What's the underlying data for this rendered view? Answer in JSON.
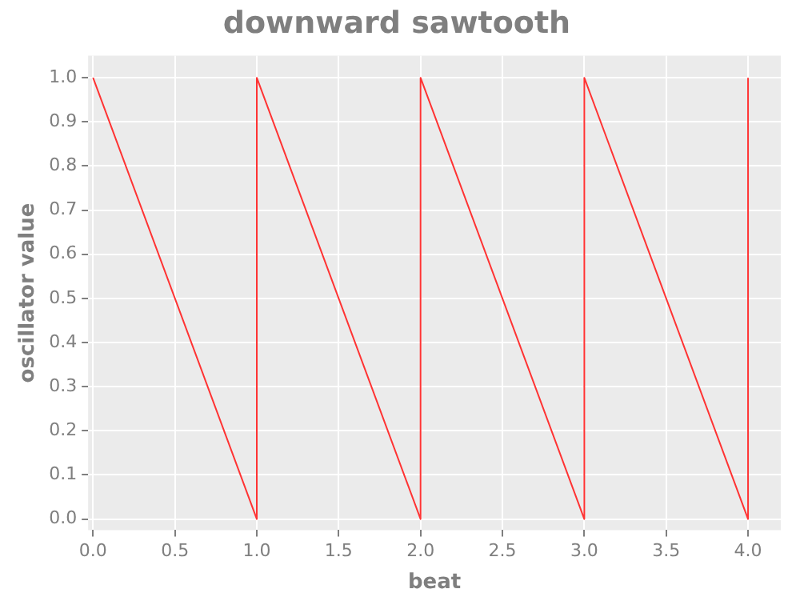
{
  "chart_data": {
    "type": "line",
    "title": "downward sawtooth",
    "xlabel": "beat",
    "ylabel": "oscillator value",
    "x": [
      0,
      1,
      1,
      2,
      2,
      3,
      3,
      4,
      4
    ],
    "series": [
      {
        "color": "#ff3333",
        "values": [
          1,
          0,
          1,
          0,
          1,
          0,
          1,
          0,
          1
        ]
      }
    ],
    "xlim": [
      -0.03,
      4.2
    ],
    "ylim": [
      -0.025,
      1.05
    ],
    "xticks": [
      {
        "value": 0,
        "label": "0.0"
      },
      0.5,
      {
        "value": 1,
        "label": "1.0"
      },
      1.5,
      {
        "value": 2,
        "label": "2.0"
      },
      2.5,
      {
        "value": 3,
        "label": "3.0"
      },
      3.5,
      {
        "value": 4,
        "label": "4.0"
      }
    ],
    "yticks": [
      {
        "value": 0,
        "label": "0.0"
      },
      0.1,
      0.2,
      0.3,
      0.4,
      0.5,
      0.6,
      0.7,
      0.8,
      0.9,
      {
        "value": 1,
        "label": "1.0"
      }
    ],
    "grid": true,
    "legend": false,
    "marker": "none",
    "line_style": "solid"
  }
}
